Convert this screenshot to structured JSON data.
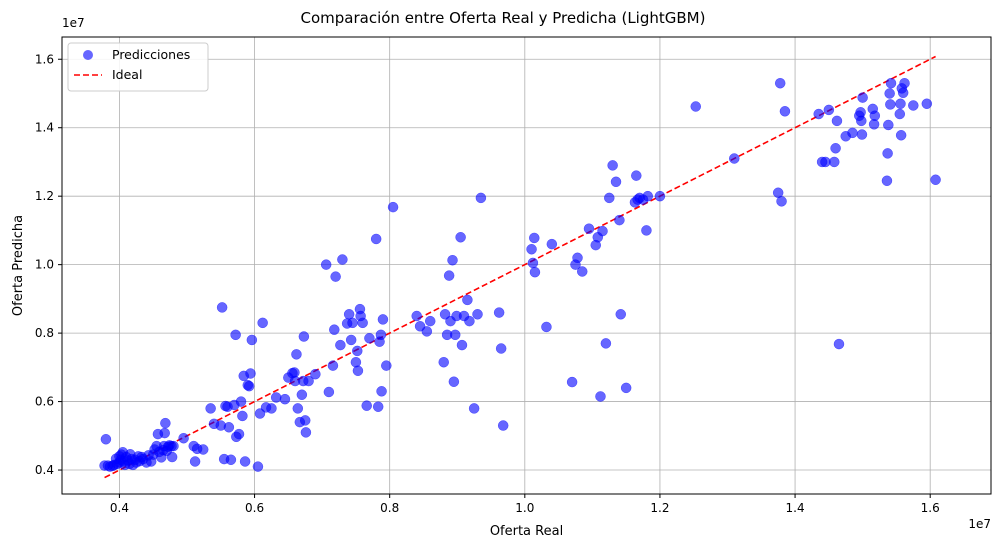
{
  "chart_data": {
    "type": "scatter",
    "title": "Comparación entre Oferta Real y Predicha (LightGBM)",
    "xlabel": "Oferta Real",
    "ylabel": "Oferta Predicha",
    "x_offset_label": "1e7",
    "y_offset_label": "1e7",
    "xlim": [
      0.315,
      1.69
    ],
    "ylim": [
      0.33,
      1.665
    ],
    "x_ticks": [
      0.4,
      0.6,
      0.8,
      1.0,
      1.2,
      1.4,
      1.6
    ],
    "x_tick_labels": [
      "0.4",
      "0.6",
      "0.8",
      "1.0",
      "1.2",
      "1.4",
      "1.6"
    ],
    "y_ticks": [
      0.4,
      0.6,
      0.8,
      1.0,
      1.2,
      1.4,
      1.6
    ],
    "y_tick_labels": [
      "0.4",
      "0.6",
      "0.8",
      "1.0",
      "1.2",
      "1.4",
      "1.6"
    ],
    "grid": true,
    "legend_position": "top-left",
    "series": [
      {
        "name": "Predicciones",
        "kind": "scatter",
        "color": "#0000ff",
        "points": [
          [
            0.378,
            0.413
          ],
          [
            0.38,
            0.49
          ],
          [
            0.383,
            0.413
          ],
          [
            0.386,
            0.41
          ],
          [
            0.39,
            0.412
          ],
          [
            0.392,
            0.415
          ],
          [
            0.395,
            0.433
          ],
          [
            0.397,
            0.418
          ],
          [
            0.4,
            0.422
          ],
          [
            0.4,
            0.44
          ],
          [
            0.402,
            0.43
          ],
          [
            0.403,
            0.445
          ],
          [
            0.405,
            0.452
          ],
          [
            0.406,
            0.425
          ],
          [
            0.408,
            0.415
          ],
          [
            0.41,
            0.438
          ],
          [
            0.412,
            0.428
          ],
          [
            0.415,
            0.418
          ],
          [
            0.416,
            0.446
          ],
          [
            0.418,
            0.432
          ],
          [
            0.42,
            0.415
          ],
          [
            0.423,
            0.43
          ],
          [
            0.425,
            0.422
          ],
          [
            0.428,
            0.44
          ],
          [
            0.43,
            0.426
          ],
          [
            0.433,
            0.438
          ],
          [
            0.435,
            0.432
          ],
          [
            0.44,
            0.422
          ],
          [
            0.443,
            0.443
          ],
          [
            0.447,
            0.425
          ],
          [
            0.45,
            0.445
          ],
          [
            0.452,
            0.46
          ],
          [
            0.455,
            0.47
          ],
          [
            0.457,
            0.505
          ],
          [
            0.459,
            0.453
          ],
          [
            0.462,
            0.437
          ],
          [
            0.465,
            0.458
          ],
          [
            0.466,
            0.47
          ],
          [
            0.467,
            0.508
          ],
          [
            0.468,
            0.537
          ],
          [
            0.47,
            0.456
          ],
          [
            0.472,
            0.468
          ],
          [
            0.474,
            0.472
          ],
          [
            0.477,
            0.47
          ],
          [
            0.478,
            0.438
          ],
          [
            0.48,
            0.47
          ],
          [
            0.495,
            0.493
          ],
          [
            0.51,
            0.47
          ],
          [
            0.512,
            0.425
          ],
          [
            0.515,
            0.462
          ],
          [
            0.524,
            0.46
          ],
          [
            0.535,
            0.58
          ],
          [
            0.54,
            0.535
          ],
          [
            0.55,
            0.53
          ],
          [
            0.552,
            0.875
          ],
          [
            0.555,
            0.432
          ],
          [
            0.557,
            0.587
          ],
          [
            0.56,
            0.585
          ],
          [
            0.562,
            0.525
          ],
          [
            0.565,
            0.43
          ],
          [
            0.57,
            0.59
          ],
          [
            0.572,
            0.795
          ],
          [
            0.573,
            0.497
          ],
          [
            0.577,
            0.505
          ],
          [
            0.58,
            0.6
          ],
          [
            0.582,
            0.558
          ],
          [
            0.584,
            0.675
          ],
          [
            0.586,
            0.425
          ],
          [
            0.59,
            0.648
          ],
          [
            0.592,
            0.645
          ],
          [
            0.594,
            0.682
          ],
          [
            0.596,
            0.78
          ],
          [
            0.605,
            0.41
          ],
          [
            0.608,
            0.565
          ],
          [
            0.612,
            0.83
          ],
          [
            0.617,
            0.583
          ],
          [
            0.625,
            0.58
          ],
          [
            0.632,
            0.612
          ],
          [
            0.645,
            0.607
          ],
          [
            0.65,
            0.67
          ],
          [
            0.656,
            0.683
          ],
          [
            0.659,
            0.685
          ],
          [
            0.66,
            0.66
          ],
          [
            0.662,
            0.738
          ],
          [
            0.664,
            0.58
          ],
          [
            0.667,
            0.54
          ],
          [
            0.67,
            0.62
          ],
          [
            0.672,
            0.66
          ],
          [
            0.673,
            0.79
          ],
          [
            0.675,
            0.545
          ],
          [
            0.676,
            0.51
          ],
          [
            0.68,
            0.66
          ],
          [
            0.69,
            0.68
          ],
          [
            0.706,
            1.0
          ],
          [
            0.71,
            0.628
          ],
          [
            0.716,
            0.705
          ],
          [
            0.718,
            0.81
          ],
          [
            0.72,
            0.965
          ],
          [
            0.727,
            0.765
          ],
          [
            0.73,
            1.015
          ],
          [
            0.737,
            0.828
          ],
          [
            0.74,
            0.855
          ],
          [
            0.743,
            0.78
          ],
          [
            0.745,
            0.83
          ],
          [
            0.75,
            0.715
          ],
          [
            0.752,
            0.748
          ],
          [
            0.753,
            0.69
          ],
          [
            0.756,
            0.87
          ],
          [
            0.757,
            0.85
          ],
          [
            0.76,
            0.83
          ],
          [
            0.766,
            0.588
          ],
          [
            0.77,
            0.785
          ],
          [
            0.78,
            1.075
          ],
          [
            0.783,
            0.585
          ],
          [
            0.785,
            0.775
          ],
          [
            0.787,
            0.795
          ],
          [
            0.788,
            0.63
          ],
          [
            0.79,
            0.84
          ],
          [
            0.795,
            0.705
          ],
          [
            0.805,
            1.168
          ],
          [
            0.84,
            0.85
          ],
          [
            0.845,
            0.82
          ],
          [
            0.855,
            0.805
          ],
          [
            0.86,
            0.835
          ],
          [
            0.88,
            0.715
          ],
          [
            0.882,
            0.855
          ],
          [
            0.885,
            0.795
          ],
          [
            0.888,
            0.968
          ],
          [
            0.89,
            0.835
          ],
          [
            0.893,
            1.013
          ],
          [
            0.895,
            0.658
          ],
          [
            0.897,
            0.795
          ],
          [
            0.899,
            0.85
          ],
          [
            0.905,
            1.08
          ],
          [
            0.907,
            0.765
          ],
          [
            0.91,
            0.85
          ],
          [
            0.915,
            0.897
          ],
          [
            0.918,
            0.835
          ],
          [
            0.925,
            0.58
          ],
          [
            0.93,
            0.855
          ],
          [
            0.935,
            1.195
          ],
          [
            0.962,
            0.86
          ],
          [
            0.965,
            0.755
          ],
          [
            0.968,
            0.53
          ],
          [
            1.01,
            1.045
          ],
          [
            1.012,
            1.005
          ],
          [
            1.014,
            1.078
          ],
          [
            1.015,
            0.978
          ],
          [
            1.032,
            0.818
          ],
          [
            1.04,
            1.06
          ],
          [
            1.07,
            0.657
          ],
          [
            1.075,
            1.0
          ],
          [
            1.078,
            1.02
          ],
          [
            1.085,
            0.98
          ],
          [
            1.095,
            1.105
          ],
          [
            1.105,
            1.057
          ],
          [
            1.108,
            1.08
          ],
          [
            1.112,
            0.615
          ],
          [
            1.115,
            1.098
          ],
          [
            1.12,
            0.77
          ],
          [
            1.125,
            1.195
          ],
          [
            1.13,
            1.29
          ],
          [
            1.135,
            1.242
          ],
          [
            1.14,
            1.13
          ],
          [
            1.142,
            0.855
          ],
          [
            1.15,
            0.64
          ],
          [
            1.163,
            1.182
          ],
          [
            1.165,
            1.26
          ],
          [
            1.167,
            1.19
          ],
          [
            1.17,
            1.195
          ],
          [
            1.175,
            1.19
          ],
          [
            1.18,
            1.1
          ],
          [
            1.182,
            1.2
          ],
          [
            1.2,
            1.2
          ],
          [
            1.253,
            1.462
          ],
          [
            1.31,
            1.31
          ],
          [
            1.375,
            1.21
          ],
          [
            1.378,
            1.53
          ],
          [
            1.38,
            1.185
          ],
          [
            1.385,
            1.448
          ],
          [
            1.435,
            1.44
          ],
          [
            1.44,
            1.3
          ],
          [
            1.445,
            1.3
          ],
          [
            1.45,
            1.452
          ],
          [
            1.458,
            1.3
          ],
          [
            1.46,
            1.34
          ],
          [
            1.462,
            1.42
          ],
          [
            1.465,
            0.768
          ],
          [
            1.475,
            1.375
          ],
          [
            1.485,
            1.385
          ],
          [
            1.495,
            1.435
          ],
          [
            1.497,
            1.445
          ],
          [
            1.498,
            1.42
          ],
          [
            1.499,
            1.38
          ],
          [
            1.5,
            1.488
          ],
          [
            1.515,
            1.455
          ],
          [
            1.517,
            1.41
          ],
          [
            1.518,
            1.435
          ],
          [
            1.536,
            1.245
          ],
          [
            1.537,
            1.325
          ],
          [
            1.538,
            1.408
          ],
          [
            1.54,
            1.5
          ],
          [
            1.541,
            1.468
          ],
          [
            1.542,
            1.53
          ],
          [
            1.555,
            1.44
          ],
          [
            1.556,
            1.47
          ],
          [
            1.557,
            1.378
          ],
          [
            1.558,
            1.515
          ],
          [
            1.56,
            1.502
          ],
          [
            1.562,
            1.53
          ],
          [
            1.575,
            1.465
          ],
          [
            1.595,
            1.47
          ],
          [
            1.608,
            1.248
          ]
        ]
      },
      {
        "name": "Ideal",
        "kind": "line",
        "style": "dashed",
        "color": "#ff0000",
        "x": [
          0.378,
          1.608
        ],
        "y": [
          0.378,
          1.608
        ]
      }
    ]
  }
}
